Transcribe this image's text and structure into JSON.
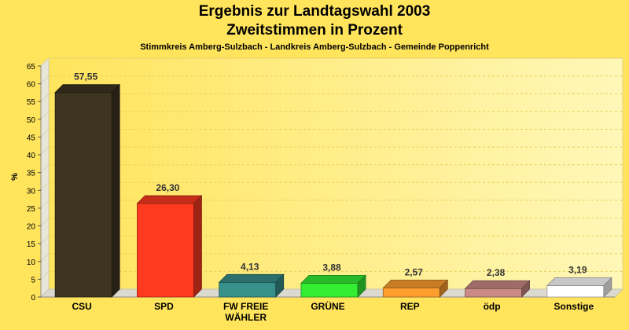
{
  "header": {
    "title_line1": "Ergebnis zur Landtagswahl 2003",
    "title_line2": "Zweitstimmen in Prozent",
    "subtitle": "Stimmkreis Amberg-Sulzbach - Landkreis Amberg-Sulzbach - Gemeinde Poppenricht"
  },
  "chart_data": {
    "type": "bar",
    "title": "Ergebnis zur Landtagswahl 2003 Zweitstimmen in Prozent",
    "subtitle": "Stimmkreis Amberg-Sulzbach - Landkreis Amberg-Sulzbach - Gemeinde Poppenricht",
    "xlabel": "",
    "ylabel": "%",
    "ylim": [
      0,
      65
    ],
    "yticks": [
      0,
      5,
      10,
      15,
      20,
      25,
      30,
      35,
      40,
      45,
      50,
      55,
      60,
      65
    ],
    "grid": true,
    "categories": [
      "CSU",
      "SPD",
      "FW FREIE WÄHLER",
      "GRÜNE",
      "REP",
      "ödp",
      "Sonstige"
    ],
    "category_label_lines": [
      [
        "CSU"
      ],
      [
        "SPD"
      ],
      [
        "FW FREIE",
        "WÄHLER"
      ],
      [
        "GRÜNE"
      ],
      [
        "REP"
      ],
      [
        "ödp"
      ],
      [
        "Sonstige"
      ]
    ],
    "values": [
      57.55,
      26.3,
      4.13,
      3.88,
      2.57,
      2.38,
      3.19
    ],
    "value_labels": [
      "57,55",
      "26,30",
      "4,13",
      "3,88",
      "2,57",
      "2,38",
      "3,19"
    ],
    "colors": [
      "#3d3520",
      "#ff3a1f",
      "#37908a",
      "#33ee33",
      "#ff9f30",
      "#c98a86",
      "#ffffff"
    ]
  }
}
